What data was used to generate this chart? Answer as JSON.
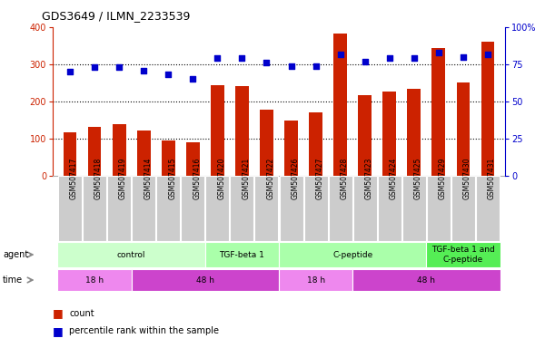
{
  "title": "GDS3649 / ILMN_2233539",
  "samples": [
    "GSM507417",
    "GSM507418",
    "GSM507419",
    "GSM507414",
    "GSM507415",
    "GSM507416",
    "GSM507420",
    "GSM507421",
    "GSM507422",
    "GSM507426",
    "GSM507427",
    "GSM507428",
    "GSM507423",
    "GSM507424",
    "GSM507425",
    "GSM507429",
    "GSM507430",
    "GSM507431"
  ],
  "counts": [
    118,
    132,
    138,
    122,
    94,
    90,
    245,
    242,
    178,
    148,
    170,
    382,
    218,
    228,
    235,
    345,
    250,
    362
  ],
  "percentiles": [
    70,
    73,
    73,
    71,
    68,
    65,
    79,
    79,
    76,
    74,
    74,
    82,
    77,
    79,
    79,
    83,
    80,
    82
  ],
  "bar_color": "#cc2200",
  "dot_color": "#0000cc",
  "ylim_left": [
    0,
    400
  ],
  "ylim_right": [
    0,
    100
  ],
  "yticks_left": [
    0,
    100,
    200,
    300,
    400
  ],
  "yticks_right": [
    0,
    25,
    50,
    75,
    100
  ],
  "ytick_labels_right": [
    "0",
    "25",
    "50",
    "75",
    "100%"
  ],
  "ytick_labels_left": [
    "0",
    "100",
    "200",
    "300",
    "400"
  ],
  "agent_groups": [
    {
      "label": "control",
      "start": 0,
      "end": 5,
      "color": "#ccffcc"
    },
    {
      "label": "TGF-beta 1",
      "start": 6,
      "end": 8,
      "color": "#aaffaa"
    },
    {
      "label": "C-peptide",
      "start": 9,
      "end": 14,
      "color": "#aaffaa"
    },
    {
      "label": "TGF-beta 1 and\nC-peptide",
      "start": 15,
      "end": 17,
      "color": "#55ee55"
    }
  ],
  "time_groups": [
    {
      "label": "18 h",
      "start": 0,
      "end": 2,
      "color": "#ee88ee"
    },
    {
      "label": "48 h",
      "start": 3,
      "end": 8,
      "color": "#cc44cc"
    },
    {
      "label": "18 h",
      "start": 9,
      "end": 11,
      "color": "#ee88ee"
    },
    {
      "label": "48 h",
      "start": 12,
      "end": 17,
      "color": "#cc44cc"
    }
  ],
  "legend_count_label": "count",
  "legend_pct_label": "percentile rank within the sample",
  "agent_label": "agent",
  "time_label": "time",
  "bg_color": "#ffffff",
  "sample_bg": "#cccccc",
  "grid_yticks": [
    100,
    200,
    300
  ]
}
